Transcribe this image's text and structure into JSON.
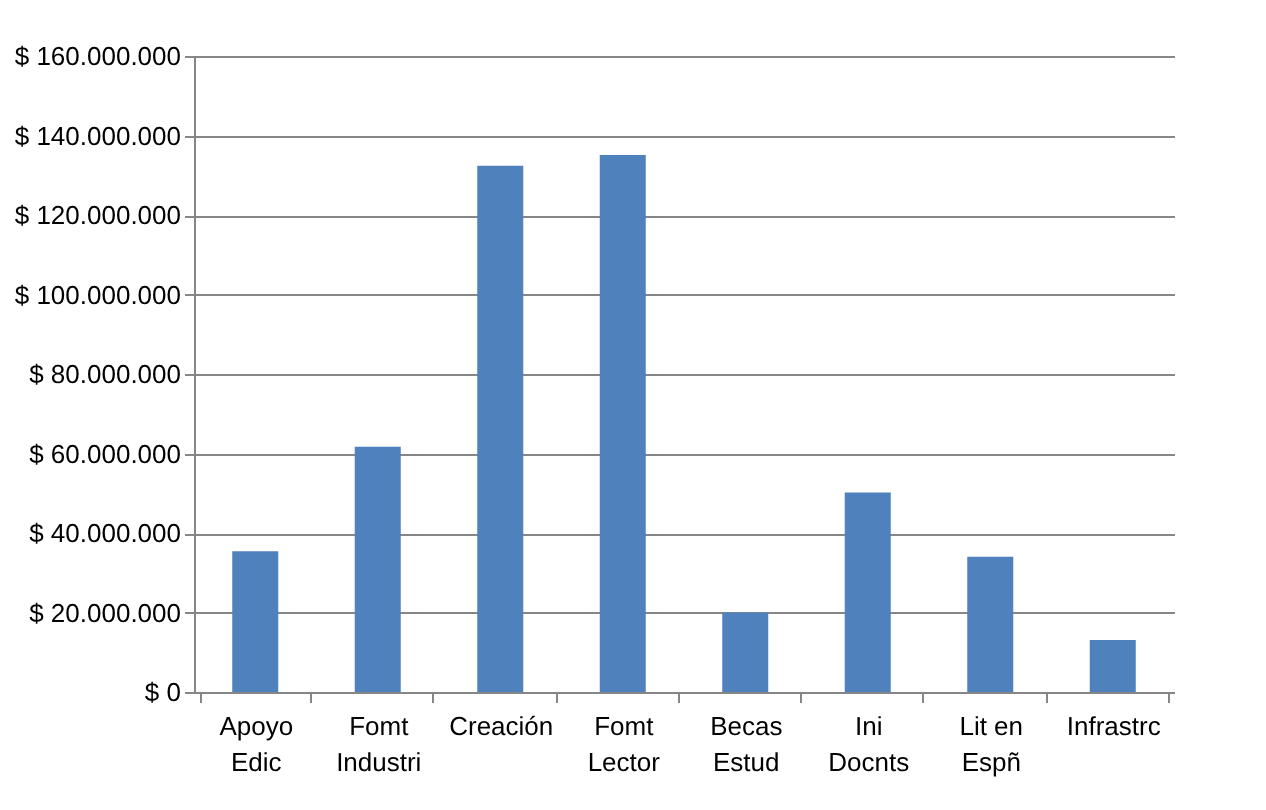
{
  "chart_data": {
    "type": "bar",
    "categories": [
      "Apoyo\nEdic",
      "Fomt\nIndustri",
      "Creación",
      "Fomt\nLector",
      "Becas\nEstud",
      "Ini\nDocnts",
      "Lit en\nEspñ",
      "Infrastrc"
    ],
    "values": [
      35400000,
      61700000,
      132400000,
      135100000,
      20000000,
      50200000,
      34000000,
      13100000
    ],
    "color": "#4f81bd",
    "ylim": [
      0,
      160000000
    ],
    "yticks": [
      {
        "value": 0,
        "label": "$ 0"
      },
      {
        "value": 20000000,
        "label": "$ 20.000.000"
      },
      {
        "value": 40000000,
        "label": "$ 40.000.000"
      },
      {
        "value": 60000000,
        "label": "$ 60.000.000"
      },
      {
        "value": 80000000,
        "label": "$ 80.000.000"
      },
      {
        "value": 100000000,
        "label": "$ 100.000.000"
      },
      {
        "value": 120000000,
        "label": "$ 120.000.000"
      },
      {
        "value": 140000000,
        "label": "$ 140.000.000"
      },
      {
        "value": 160000000,
        "label": "$ 160.000.000"
      }
    ],
    "grid": "y"
  }
}
